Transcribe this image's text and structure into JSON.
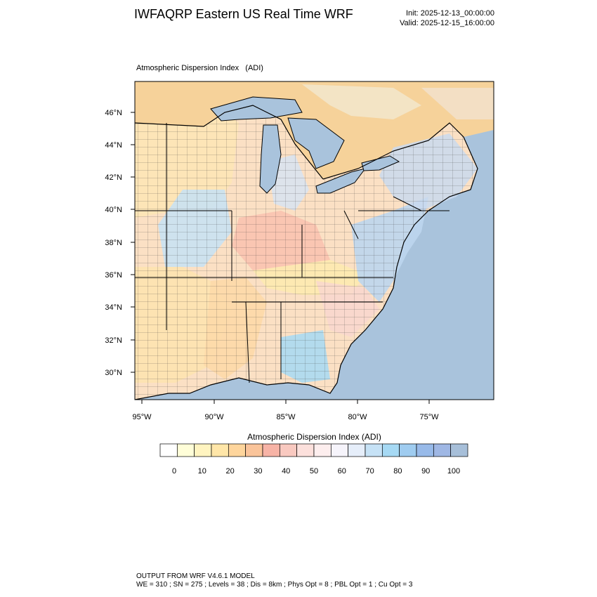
{
  "header": {
    "title": "IWFAQRP Eastern US Real Time WRF",
    "init": "Init: 2025-12-13_00:00:00",
    "valid": "Valid: 2025-12-15_16:00:00"
  },
  "map": {
    "field_label": "Atmospheric Dispersion Index   (ADI)",
    "lat_labels": [
      "46°N",
      "44°N",
      "42°N",
      "40°N",
      "38°N",
      "36°N",
      "34°N",
      "32°N",
      "30°N"
    ],
    "lon_labels": [
      "95°W",
      "90°W",
      "85°W",
      "80°W",
      "75°W"
    ],
    "colors": {
      "ocean": "#a9c3dc",
      "lakes": "#a9c3dc",
      "canada": "#f6d29a"
    }
  },
  "colorbar": {
    "title": "Atmospheric Dispersion Index (ADI)",
    "ticks": [
      "0",
      "10",
      "20",
      "30",
      "40",
      "50",
      "60",
      "70",
      "80",
      "90",
      "100"
    ],
    "colors": [
      "#ffffff",
      "#fffed8",
      "#fff4c0",
      "#ffe6a8",
      "#fed59c",
      "#fac49a",
      "#f7b3a6",
      "#f9c9c0",
      "#fce0dc",
      "#fdeeee",
      "#f6f4fb",
      "#e6eefa",
      "#c6e2f6",
      "#a6d9f4",
      "#9fccf0",
      "#98bae9",
      "#9fb7e4",
      "#a7bfd9"
    ]
  },
  "footer": {
    "line1": "OUTPUT FROM WRF V4.6.1 MODEL",
    "line2": "WE = 310 ; SN = 275 ; Levels = 38 ; Dis = 8km ; Phys Opt = 8 ; PBL Opt = 1 ; Cu Opt = 3"
  }
}
